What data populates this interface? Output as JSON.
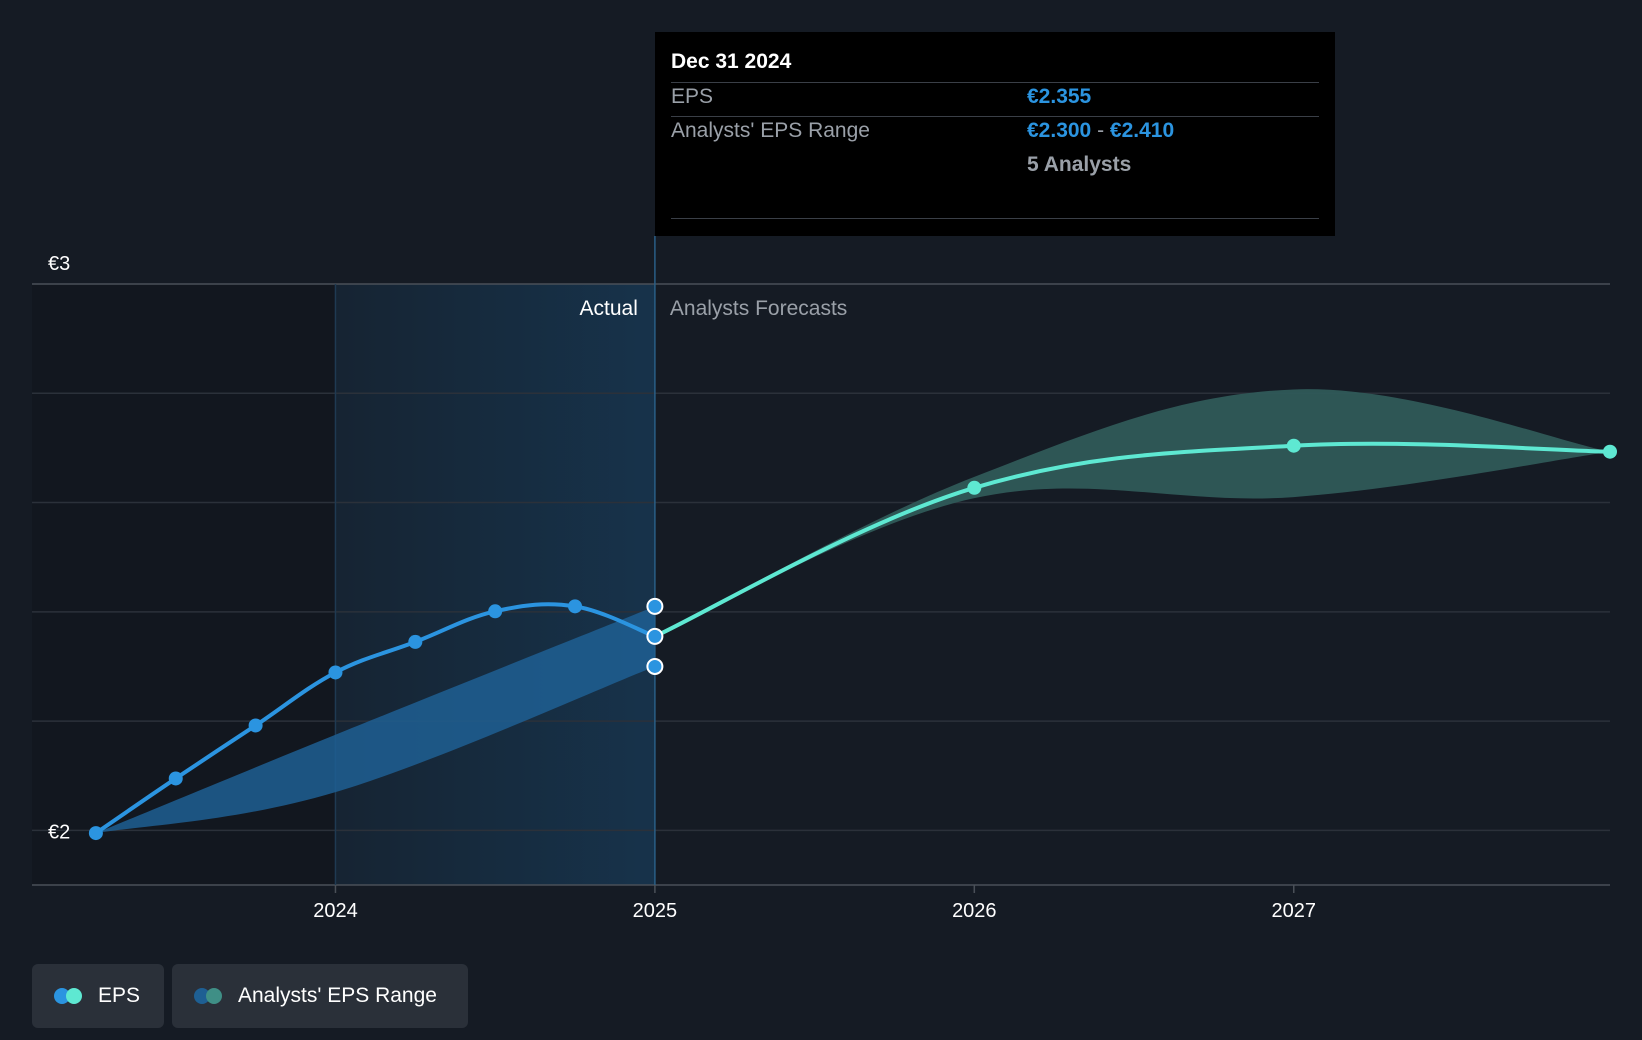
{
  "tooltip": {
    "date": "Dec 31 2024",
    "eps_label": "EPS",
    "eps_value": "€2.355",
    "range_label": "Analysts' EPS Range",
    "range_low": "€2.300",
    "range_sep": "-",
    "range_high": "€2.410",
    "analysts": "5 Analysts"
  },
  "labels": {
    "actual": "Actual",
    "forecast": "Analysts Forecasts"
  },
  "legend": {
    "eps_label": "EPS",
    "range_label": "Analysts' EPS Range"
  },
  "colors": {
    "actual": "#2b94e0",
    "forecast": "#5ee8d2",
    "range_actual": "#1e5f93",
    "range_forecast": "#2f5a58",
    "background": "#151b24"
  },
  "chart_data": {
    "type": "line",
    "y_ticks": [
      {
        "value": 3.0,
        "label": "€3"
      },
      {
        "value": 2.8,
        "label": ""
      },
      {
        "value": 2.6,
        "label": ""
      },
      {
        "value": 2.4,
        "label": ""
      },
      {
        "value": 2.2,
        "label": ""
      },
      {
        "value": 2.0,
        "label": "€2"
      }
    ],
    "x_ticks": [
      {
        "value": 2024.0,
        "label": "2024"
      },
      {
        "value": 2025.0,
        "label": "2025"
      },
      {
        "value": 2026.0,
        "label": "2026"
      },
      {
        "value": 2027.0,
        "label": "2027"
      }
    ],
    "xlim": [
      2023.05,
      2027.99
    ],
    "ylim": [
      1.9,
      3.0
    ],
    "actual_divider": 2025.0,
    "highlight_start": 2024.0,
    "series": [
      {
        "name": "EPS",
        "segment": "actual",
        "points": [
          {
            "x": 2023.25,
            "y": 1.995
          },
          {
            "x": 2023.5,
            "y": 2.095
          },
          {
            "x": 2023.75,
            "y": 2.192
          },
          {
            "x": 2024.0,
            "y": 2.289
          },
          {
            "x": 2024.25,
            "y": 2.345
          },
          {
            "x": 2024.5,
            "y": 2.401
          },
          {
            "x": 2024.75,
            "y": 2.41
          },
          {
            "x": 2025.0,
            "y": 2.355
          }
        ]
      },
      {
        "name": "EPS",
        "segment": "forecast",
        "points": [
          {
            "x": 2025.0,
            "y": 2.355
          },
          {
            "x": 2026.0,
            "y": 2.627
          },
          {
            "x": 2027.0,
            "y": 2.704
          },
          {
            "x": 2027.99,
            "y": 2.693
          }
        ]
      }
    ],
    "range_actual": {
      "x": [
        2023.25,
        2024.0,
        2025.0
      ],
      "low": [
        1.995,
        2.07,
        2.3
      ],
      "high": [
        1.995,
        2.175,
        2.41
      ]
    },
    "range_forecast": {
      "x": [
        2025.0,
        2026.0,
        2027.0,
        2027.99
      ],
      "low": [
        2.355,
        2.608,
        2.61,
        2.693
      ],
      "high": [
        2.355,
        2.647,
        2.807,
        2.693
      ]
    },
    "tooltip_markers": [
      2.41,
      2.355,
      2.3
    ]
  }
}
